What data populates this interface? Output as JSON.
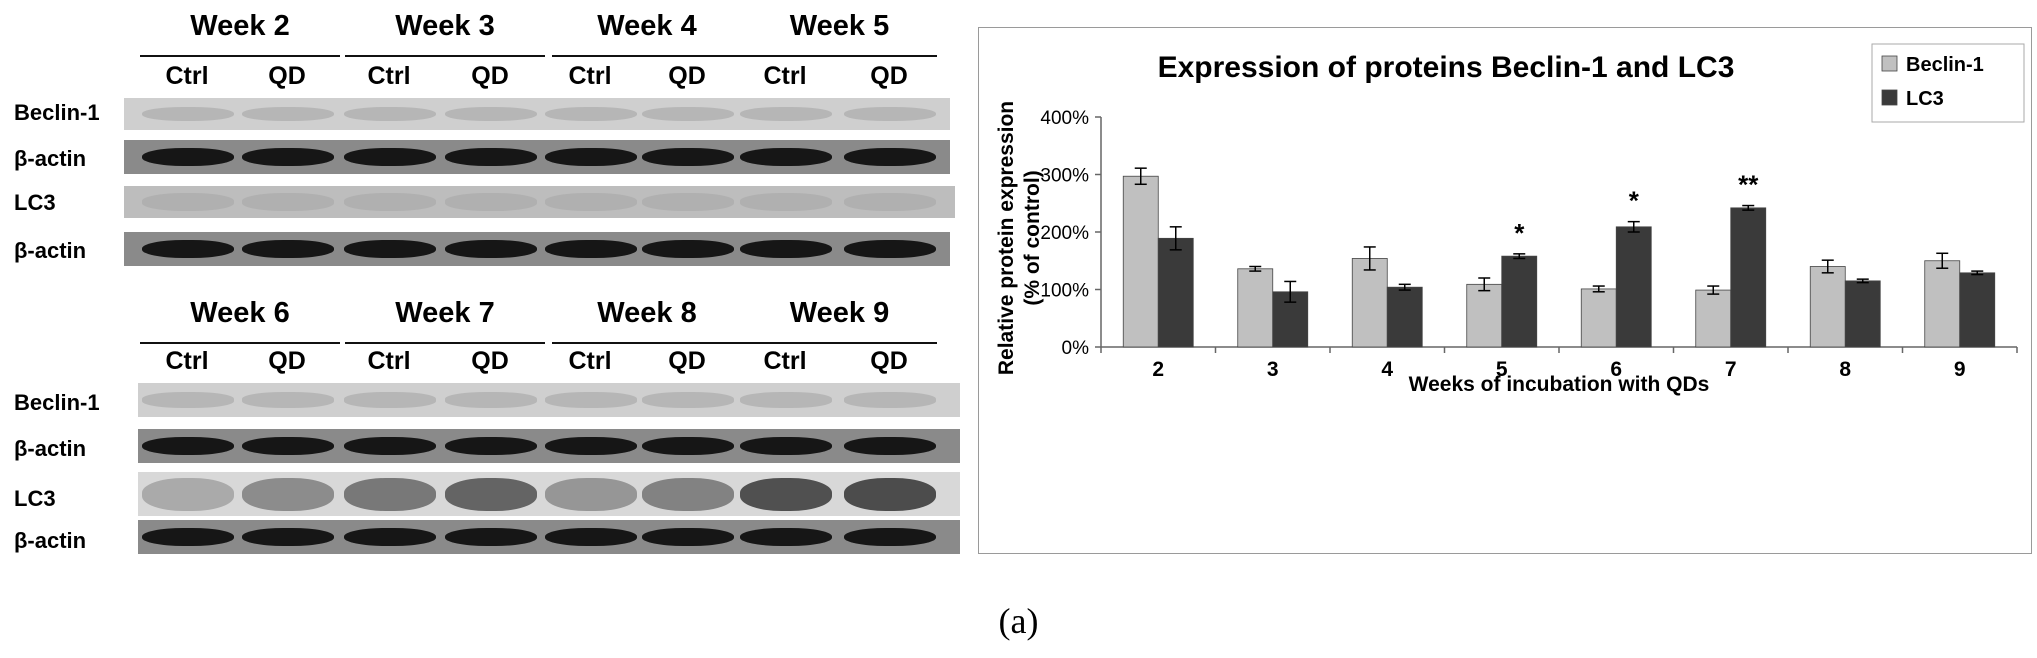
{
  "blot": {
    "top_panel": {
      "weeks": [
        "Week 2",
        "Week 3",
        "Week 4",
        "Week 5"
      ],
      "conditions": [
        "Ctrl",
        "QD"
      ],
      "rows": [
        "Beclin-1",
        "β-actin",
        "LC3",
        "β-actin"
      ]
    },
    "bottom_panel": {
      "weeks": [
        "Week 6",
        "Week 7",
        "Week 8",
        "Week 9"
      ],
      "conditions": [
        "Ctrl",
        "QD"
      ],
      "rows": [
        "Beclin-1",
        "β-actin",
        "LC3",
        "β-actin"
      ]
    }
  },
  "chart_data": {
    "type": "bar",
    "title": "Expression of proteins Beclin-1 and LC3",
    "xlabel": "Weeks of incubation with QDs",
    "ylabel": "Relative protein expression",
    "ylabel2": "(% of control)",
    "ylim": [
      0,
      400
    ],
    "yticks": [
      "0%",
      "100%",
      "200%",
      "300%",
      "400%"
    ],
    "grid": false,
    "legend_position": "top-right",
    "categories": [
      "2",
      "3",
      "4",
      "5",
      "6",
      "7",
      "8",
      "9"
    ],
    "series": [
      {
        "name": "Beclin-1",
        "color": "#c0c0c0",
        "values": [
          297,
          136,
          154,
          109,
          101,
          99,
          140,
          150
        ],
        "errors": [
          14,
          4,
          20,
          11,
          5,
          7,
          11,
          13
        ]
      },
      {
        "name": "LC3",
        "color": "#3a3a3a",
        "values": [
          189,
          96,
          104,
          158,
          209,
          242,
          115,
          129
        ],
        "errors": [
          20,
          18,
          5,
          4,
          9,
          4,
          3,
          3
        ]
      }
    ],
    "annotations": [
      {
        "category": "5",
        "series": "LC3",
        "text": "*"
      },
      {
        "category": "6",
        "series": "LC3",
        "text": "*"
      },
      {
        "category": "7",
        "series": "LC3",
        "text": "**"
      }
    ]
  },
  "caption": "(a)"
}
